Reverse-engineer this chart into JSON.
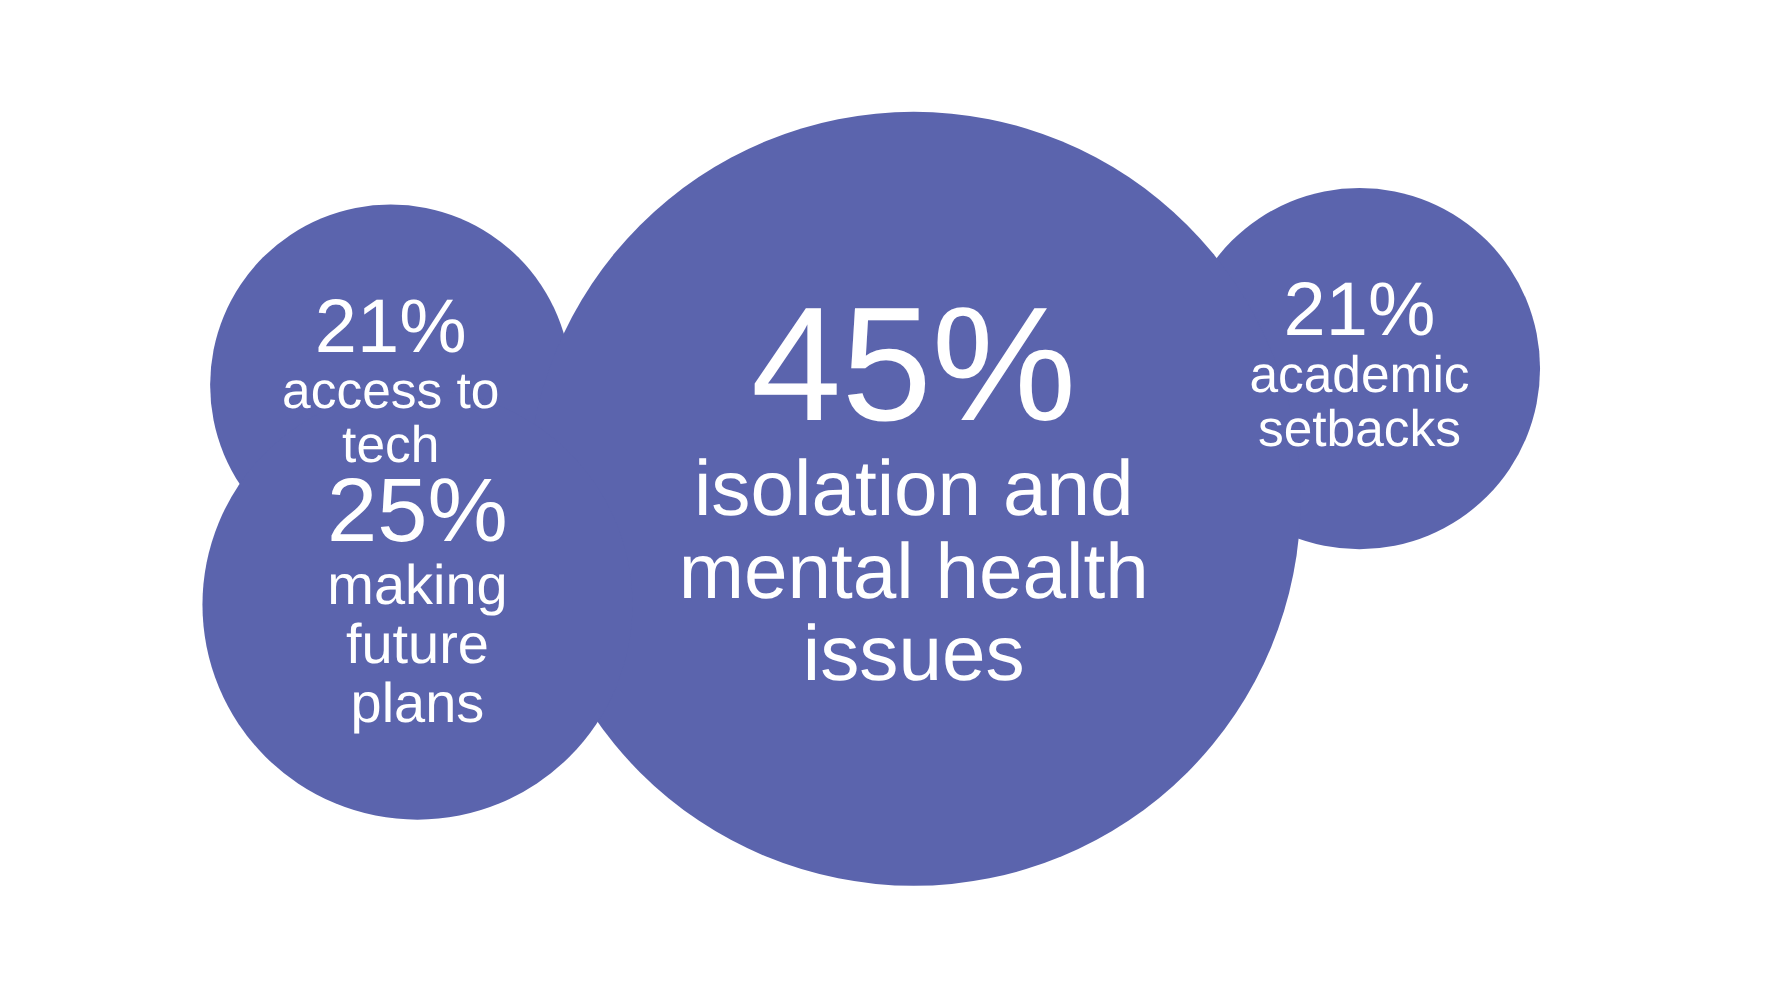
{
  "chart_data": {
    "type": "other",
    "categories": [
      "access to tech",
      "academic setbacks",
      "isolation and mental health issues",
      "making future plans"
    ],
    "values": [
      21,
      21,
      45,
      25
    ],
    "value_labels": [
      "21%",
      "21%",
      "45%",
      "25%"
    ],
    "color": "#5b64ad"
  }
}
